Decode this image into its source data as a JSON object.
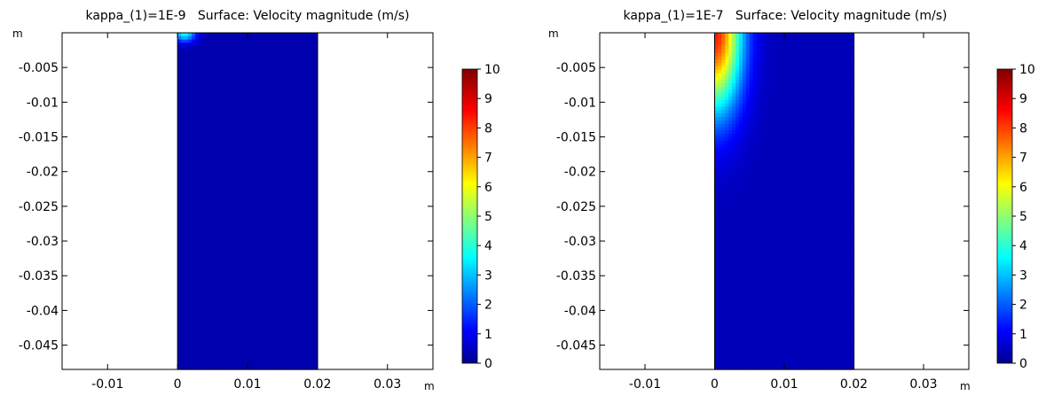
{
  "chart_data": [
    {
      "type": "heatmap",
      "title": "kappa_(1)=1E-9   Surface: Velocity magnitude (m/s)",
      "xunit": "m",
      "yunit": "m",
      "xlim": [
        -0.0165,
        0.0365
      ],
      "ylim": [
        -0.0485,
        0.0
      ],
      "xticks": [
        -0.01,
        0,
        0.01,
        0.02,
        0.03
      ],
      "xtick_labels": [
        "-0.01",
        "0",
        "0.01",
        "0.02",
        "0.03"
      ],
      "yticks": [
        -0.005,
        -0.01,
        -0.015,
        -0.02,
        -0.025,
        -0.03,
        -0.035,
        -0.04,
        -0.045
      ],
      "ytick_labels": [
        "-0.005",
        "-0.01",
        "-0.015",
        "-0.02",
        "-0.025",
        "-0.03",
        "-0.035",
        "-0.04",
        "-0.045"
      ],
      "domain_x": [
        0.0,
        0.02
      ],
      "background_value": 0.3,
      "hotspot": {
        "x": 0.001,
        "y": 0.0,
        "peak": 3.5,
        "sx": 0.0016,
        "sy": 0.0013
      },
      "colorbar": {
        "min": 0,
        "max": 10,
        "ticks": [
          "10",
          "9",
          "8",
          "7",
          "6",
          "5",
          "4",
          "3",
          "2",
          "1",
          "0"
        ]
      }
    },
    {
      "type": "heatmap",
      "title": "kappa_(1)=1E-7   Surface: Velocity magnitude (m/s)",
      "xunit": "m",
      "yunit": "m",
      "xlim": [
        -0.0165,
        0.0365
      ],
      "ylim": [
        -0.0485,
        0.0
      ],
      "xticks": [
        -0.01,
        0,
        0.01,
        0.02,
        0.03
      ],
      "xtick_labels": [
        "-0.01",
        "0",
        "0.01",
        "0.02",
        "0.03"
      ],
      "yticks": [
        -0.005,
        -0.01,
        -0.015,
        -0.02,
        -0.025,
        -0.03,
        -0.035,
        -0.04,
        -0.045
      ],
      "ytick_labels": [
        "-0.005",
        "-0.01",
        "-0.015",
        "-0.02",
        "-0.025",
        "-0.03",
        "-0.035",
        "-0.04",
        "-0.045"
      ],
      "domain_x": [
        0.0,
        0.02
      ],
      "background_value": 0.4,
      "hotspot": {
        "x": 0.0,
        "y": 0.0,
        "peak": 8.0,
        "sx": 0.0038,
        "sy": 0.011
      },
      "colorbar": {
        "min": 0,
        "max": 10,
        "ticks": [
          "10",
          "9",
          "8",
          "7",
          "6",
          "5",
          "4",
          "3",
          "2",
          "1",
          "0"
        ]
      }
    }
  ]
}
